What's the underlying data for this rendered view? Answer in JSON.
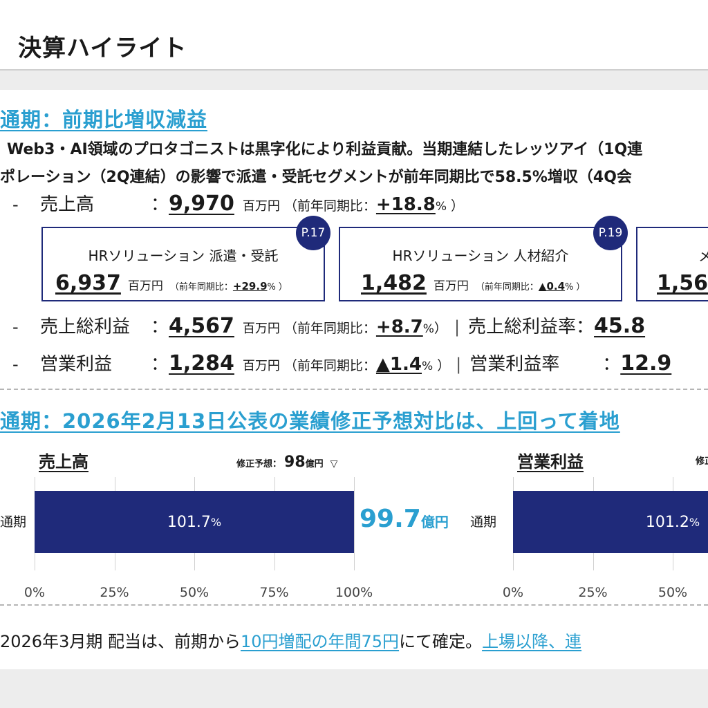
{
  "header": {
    "title": "決算ハイライト"
  },
  "section1": {
    "heading": "通期：前期比増収減益",
    "line1": "Web3・AI領域のプロタゴニストは黒字化により利益貢献。当期連結したレッツアイ（1Q連",
    "line2": "ポレーション（2Q連結）の影響で派遣・受託セグメントが前年同期比で58.5%増収（4Q会"
  },
  "sales": {
    "dash": "-",
    "label": "売上高",
    "colon": "：",
    "value": "9,970",
    "unit": "百万円",
    "paren_open": "（前年同期比：",
    "yoy": "+18.8",
    "pct": "%",
    "paren_close": "）"
  },
  "cards": [
    {
      "badge": "P.17",
      "title": "HRソリューション 派遣・受託",
      "value": "6,937",
      "unit": "百万円",
      "paren_open": "（前年同期比：",
      "yoy": "+29.9",
      "pct": "%",
      "paren_close": "）"
    },
    {
      "badge": "P.19",
      "title": "HRソリューション 人材紹介",
      "value": "1,482",
      "unit": "百万円",
      "paren_open": "（前年同期比：",
      "yoy": "▲0.4",
      "pct": "%",
      "paren_close": "）"
    },
    {
      "title": "メ",
      "value": "1,56"
    }
  ],
  "gross": {
    "dash": "-",
    "label": "売上総利益",
    "colon": "：",
    "value": "4,567",
    "unit": "百万円",
    "paren_open": "（前年同期比：",
    "yoy": "+8.7",
    "pct": "%",
    "paren_close": "）",
    "sep": "|",
    "rate_label": "売上総利益率",
    "rate_colon": "：",
    "rate_value": "45.8"
  },
  "operating": {
    "dash": "-",
    "label": "営業利益",
    "colon": "：",
    "value": "1,284",
    "unit": "百万円",
    "paren_open": "（前年同期比：",
    "yoy": "▲1.4",
    "pct": "%",
    "paren_close": "）",
    "sep": "|",
    "rate_label": "営業利益率",
    "rate_colon": "：",
    "rate_value": "12.9"
  },
  "section2": {
    "heading": "通期：2026年2月13日公表の業績修正予想対比は、上回って着地"
  },
  "chart_data": [
    {
      "type": "bar",
      "title": "売上高",
      "categories": [
        "通期"
      ],
      "values": [
        101.7
      ],
      "value_label": "101.7",
      "value_unit": "%",
      "xlim": [
        0,
        100
      ],
      "ticks": [
        "0%",
        "25%",
        "50%",
        "75%",
        "100%"
      ],
      "forecast_label": "修正予想：",
      "forecast_value": "98",
      "forecast_unit": "億円",
      "forecast_marker": "▽",
      "actual_value": "99.7",
      "actual_unit": "億円"
    },
    {
      "type": "bar",
      "title": "営業利益",
      "categories": [
        "通期"
      ],
      "values": [
        101.2
      ],
      "value_label": "101.2",
      "value_unit": "%",
      "xlim": [
        0,
        100
      ],
      "ticks": [
        "0%",
        "25%",
        "50%"
      ],
      "forecast_label": "修正"
    }
  ],
  "dividend": {
    "prefix": "2026年3月期 配当は、前期から",
    "highlight": "10円増配の年間75円",
    "mid": "にて確定。",
    "highlight2": "上場以降、連"
  }
}
